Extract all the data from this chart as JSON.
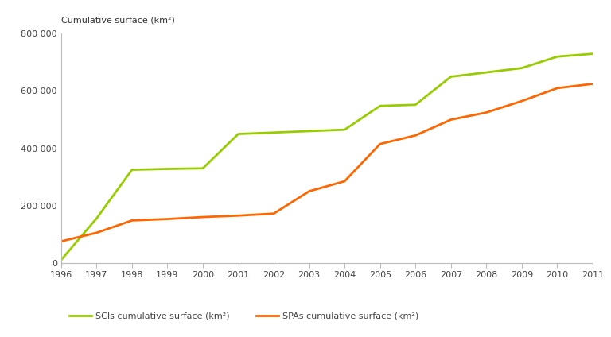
{
  "years": [
    1996,
    1997,
    1998,
    1999,
    2000,
    2001,
    2002,
    2003,
    2004,
    2005,
    2006,
    2007,
    2008,
    2009,
    2010,
    2011
  ],
  "sci_values": [
    10000,
    155000,
    325000,
    328000,
    330000,
    450000,
    455000,
    460000,
    465000,
    548000,
    552000,
    650000,
    665000,
    680000,
    720000,
    730000
  ],
  "spa_values": [
    75000,
    105000,
    148000,
    153000,
    160000,
    165000,
    172000,
    250000,
    285000,
    415000,
    445000,
    500000,
    525000,
    565000,
    610000,
    625000
  ],
  "sci_color": "#99cc00",
  "spa_color": "#ff6600",
  "ylabel": "Cumulative surface (km²)",
  "ylim": [
    0,
    800000
  ],
  "yticks": [
    0,
    200000,
    400000,
    600000,
    800000
  ],
  "ytick_labels": [
    "0",
    "200 000",
    "400 000",
    "600 000",
    "800 000"
  ],
  "sci_label": "SCIs cumulative surface (km²)",
  "spa_label": "SPAs cumulative surface (km²)",
  "line_width": 2.0,
  "background_color": "#ffffff"
}
